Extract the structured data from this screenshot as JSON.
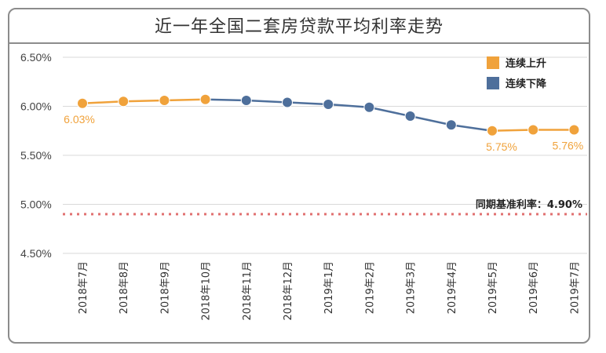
{
  "chart_data": {
    "type": "line",
    "title": "近一年全国二套房贷款平均利率走势",
    "categories": [
      "2018年7月",
      "2018年8月",
      "2018年9月",
      "2018年10月",
      "2018年11月",
      "2018年12月",
      "2019年1月",
      "2019年2月",
      "2019年3月",
      "2019年4月",
      "2019年5月",
      "2019年6月",
      "2019年7月"
    ],
    "values": [
      6.03,
      6.05,
      6.06,
      6.07,
      6.06,
      6.04,
      6.02,
      5.99,
      5.9,
      5.81,
      5.75,
      5.76,
      5.76
    ],
    "trend": [
      "up",
      "up",
      "up",
      "up",
      "down",
      "down",
      "down",
      "down",
      "down",
      "down",
      "up",
      "up",
      "up"
    ],
    "ylim": [
      4.5,
      6.5
    ],
    "yticks": [
      "6.50%",
      "6.00%",
      "5.50%",
      "5.00%",
      "4.50%"
    ],
    "ytick_values": [
      6.5,
      6.0,
      5.5,
      5.0,
      4.5
    ],
    "data_labels": [
      {
        "index": 0,
        "text": "6.03%"
      },
      {
        "index": 10,
        "text": "5.75%"
      },
      {
        "index": 12,
        "text": "5.76%"
      }
    ],
    "legend": {
      "position": "top-right",
      "entries": [
        {
          "label": "连续上升",
          "color": "#f0a23b"
        },
        {
          "label": "连续下降",
          "color": "#4e6f9b"
        }
      ]
    },
    "reference_line": {
      "value": 4.9,
      "label": "同期基准利率：4.90%",
      "color": "#e07070"
    },
    "grid": "horizontal",
    "colors": {
      "up": "#f0a23b",
      "down": "#4e6f9b",
      "label": "#f0a23b",
      "grid": "#d9d9d9"
    }
  }
}
